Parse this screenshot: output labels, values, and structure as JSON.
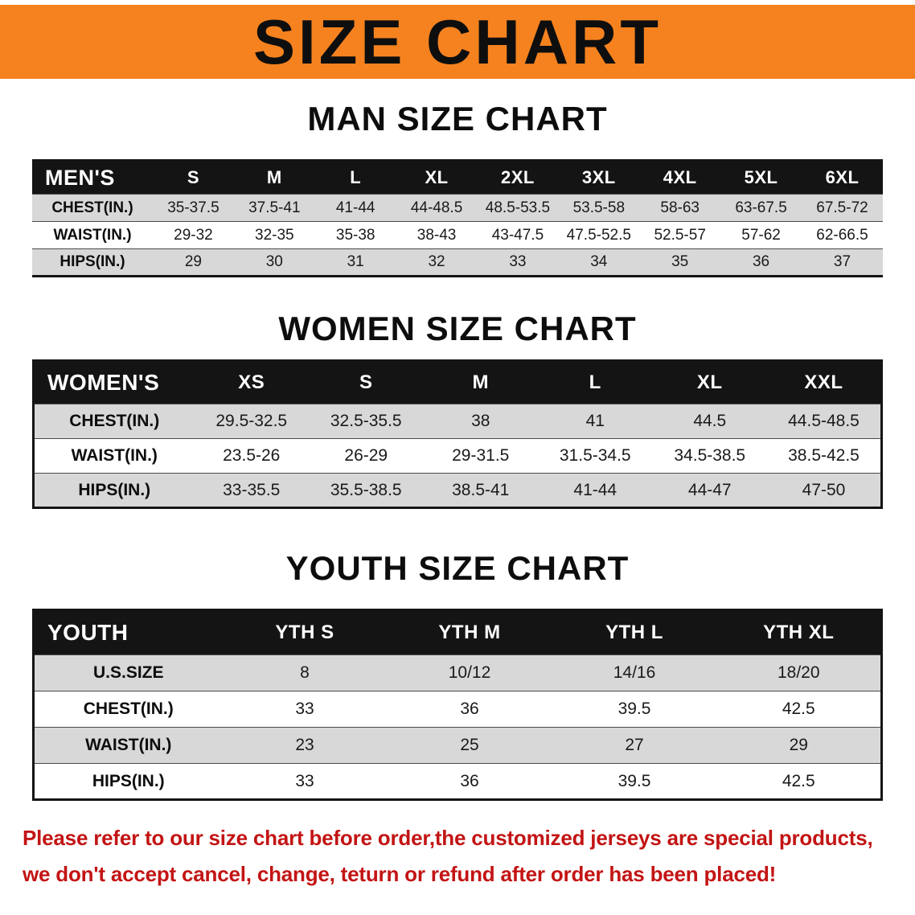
{
  "banner": {
    "title": "SIZE CHART"
  },
  "colors": {
    "banner_orange": "#f5821f",
    "header_black": "#141414",
    "row_gray": "#d8d8d8",
    "footer_red": "#c31414"
  },
  "sections": [
    {
      "heading": "MAN SIZE CHART",
      "table": {
        "header": [
          "MEN'S",
          "S",
          "M",
          "L",
          "XL",
          "2XL",
          "3XL",
          "4XL",
          "5XL",
          "6XL"
        ],
        "rows": [
          [
            "CHEST(IN.)",
            "35-37.5",
            "37.5-41",
            "41-44",
            "44-48.5",
            "48.5-53.5",
            "53.5-58",
            "58-63",
            "63-67.5",
            "67.5-72"
          ],
          [
            "WAIST(IN.)",
            "29-32",
            "32-35",
            "35-38",
            "38-43",
            "43-47.5",
            "47.5-52.5",
            "52.5-57",
            "57-62",
            "62-66.5"
          ],
          [
            "HIPS(IN.)",
            "29",
            "30",
            "31",
            "32",
            "33",
            "34",
            "35",
            "36",
            "37"
          ]
        ]
      }
    },
    {
      "heading": "WOMEN SIZE CHART",
      "table": {
        "header": [
          "WOMEN'S",
          "XS",
          "S",
          "M",
          "L",
          "XL",
          "XXL"
        ],
        "rows": [
          [
            "CHEST(IN.)",
            "29.5-32.5",
            "32.5-35.5",
            "38",
            "41",
            "44.5",
            "44.5-48.5"
          ],
          [
            "WAIST(IN.)",
            "23.5-26",
            "26-29",
            "29-31.5",
            "31.5-34.5",
            "34.5-38.5",
            "38.5-42.5"
          ],
          [
            "HIPS(IN.)",
            "33-35.5",
            "35.5-38.5",
            "38.5-41",
            "41-44",
            "44-47",
            "47-50"
          ]
        ]
      }
    },
    {
      "heading": "YOUTH SIZE CHART",
      "table": {
        "header": [
          "YOUTH",
          "YTH S",
          "YTH M",
          "YTH L",
          "YTH XL"
        ],
        "rows": [
          [
            "U.S.SIZE",
            "8",
            "10/12",
            "14/16",
            "18/20"
          ],
          [
            "CHEST(IN.)",
            "33",
            "36",
            "39.5",
            "42.5"
          ],
          [
            "WAIST(IN.)",
            "23",
            "25",
            "27",
            "29"
          ],
          [
            "HIPS(IN.)",
            "33",
            "36",
            "39.5",
            "42.5"
          ]
        ]
      }
    }
  ],
  "footer": {
    "line1": "Please refer to our size chart before order,the customized jerseys are special products,",
    "line2": "we don't accept cancel, change, teturn or refund after order has been placed!"
  }
}
